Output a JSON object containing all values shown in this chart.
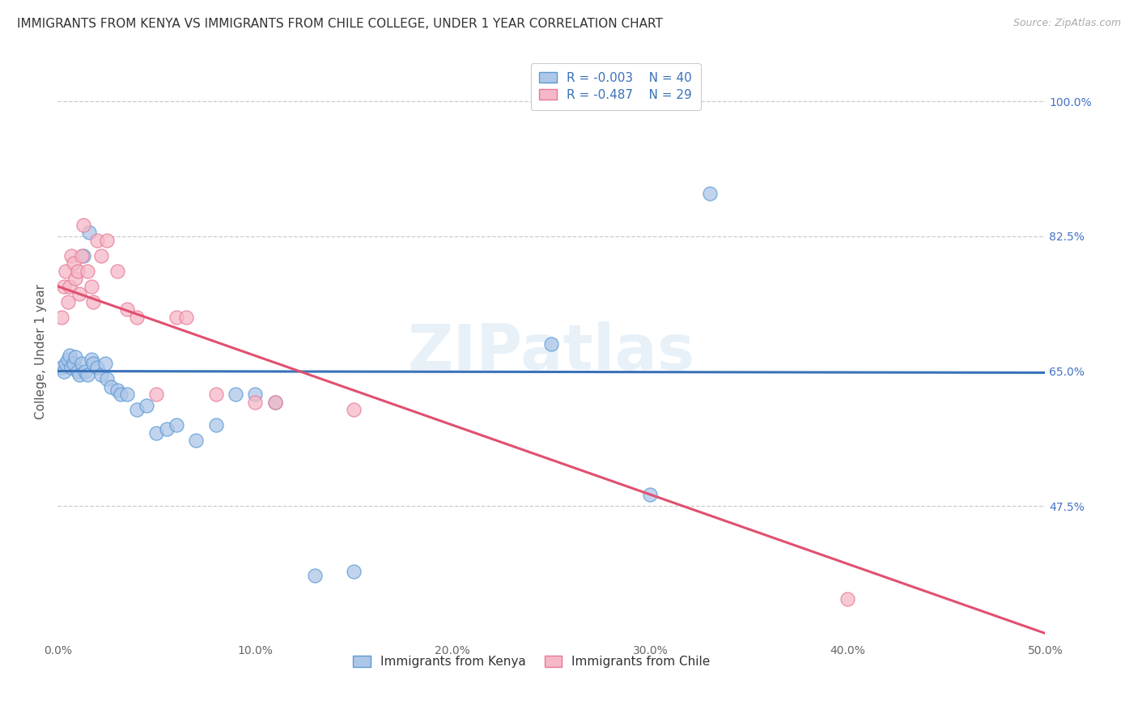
{
  "title": "IMMIGRANTS FROM KENYA VS IMMIGRANTS FROM CHILE COLLEGE, UNDER 1 YEAR CORRELATION CHART",
  "source": "Source: ZipAtlas.com",
  "ylabel": "College, Under 1 year",
  "xlim": [
    0.0,
    0.5
  ],
  "ylim": [
    0.3,
    1.05
  ],
  "xtick_values": [
    0.0,
    0.1,
    0.2,
    0.3,
    0.4,
    0.5
  ],
  "ytick_values": [
    0.475,
    0.65,
    0.825,
    1.0
  ],
  "legend_R_kenya": "-0.003",
  "legend_N_kenya": "40",
  "legend_R_chile": "-0.487",
  "legend_N_chile": "29",
  "kenya_color": "#aec6e8",
  "chile_color": "#f5b8c8",
  "kenya_edge_color": "#5b9bd5",
  "chile_edge_color": "#e87a96",
  "kenya_line_color": "#3a72b8",
  "chile_line_color": "#e05070",
  "watermark": "ZIPatlas",
  "kenya_x": [
    0.002,
    0.003,
    0.004,
    0.005,
    0.006,
    0.007,
    0.008,
    0.009,
    0.01,
    0.011,
    0.012,
    0.013,
    0.014,
    0.015,
    0.016,
    0.017,
    0.018,
    0.02,
    0.022,
    0.024,
    0.025,
    0.027,
    0.03,
    0.032,
    0.035,
    0.04,
    0.045,
    0.05,
    0.055,
    0.06,
    0.07,
    0.08,
    0.09,
    0.1,
    0.11,
    0.13,
    0.15,
    0.25,
    0.3,
    0.33
  ],
  "kenya_y": [
    0.655,
    0.65,
    0.66,
    0.665,
    0.67,
    0.655,
    0.66,
    0.668,
    0.65,
    0.645,
    0.66,
    0.8,
    0.65,
    0.645,
    0.83,
    0.665,
    0.66,
    0.655,
    0.645,
    0.66,
    0.64,
    0.63,
    0.625,
    0.62,
    0.62,
    0.6,
    0.605,
    0.57,
    0.575,
    0.58,
    0.56,
    0.58,
    0.62,
    0.62,
    0.61,
    0.385,
    0.39,
    0.685,
    0.49,
    0.88
  ],
  "chile_x": [
    0.002,
    0.003,
    0.004,
    0.005,
    0.006,
    0.007,
    0.008,
    0.009,
    0.01,
    0.011,
    0.012,
    0.013,
    0.015,
    0.017,
    0.018,
    0.02,
    0.022,
    0.025,
    0.03,
    0.035,
    0.04,
    0.06,
    0.065,
    0.08,
    0.1,
    0.11,
    0.15,
    0.4,
    0.05
  ],
  "chile_y": [
    0.72,
    0.76,
    0.78,
    0.74,
    0.76,
    0.8,
    0.79,
    0.77,
    0.78,
    0.75,
    0.8,
    0.84,
    0.78,
    0.76,
    0.74,
    0.82,
    0.8,
    0.82,
    0.78,
    0.73,
    0.72,
    0.72,
    0.72,
    0.62,
    0.61,
    0.61,
    0.6,
    0.355,
    0.62
  ],
  "grid_color": "#cccccc",
  "background_color": "#ffffff",
  "title_fontsize": 11,
  "axis_label_fontsize": 11,
  "tick_fontsize": 10,
  "legend_fontsize": 11,
  "kenya_line_x0": 0.0,
  "kenya_line_x1": 0.5,
  "kenya_line_y0": 0.65,
  "kenya_line_y1": 0.648,
  "chile_line_x0": 0.0,
  "chile_line_x1": 0.5,
  "chile_line_y0": 0.76,
  "chile_line_y1": 0.31
}
